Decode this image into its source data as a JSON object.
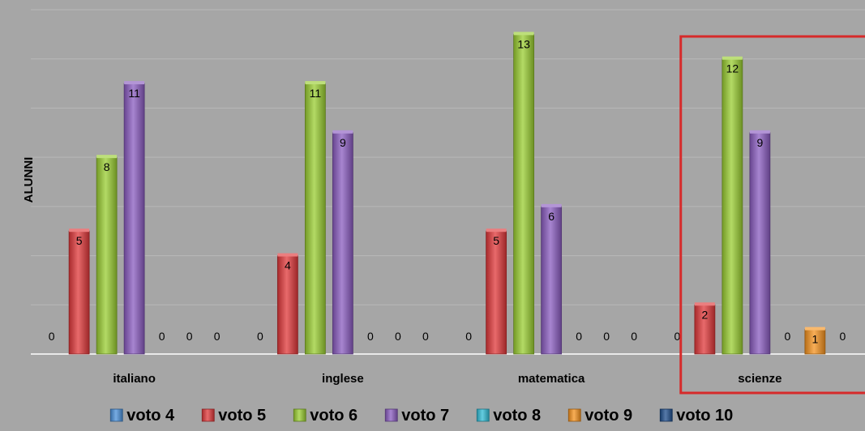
{
  "chart_data": {
    "type": "bar",
    "title": "",
    "xlabel": "",
    "ylabel": "ALUNNI",
    "ylim": [
      0,
      14
    ],
    "grid": true,
    "legend_position": "bottom",
    "categories": [
      "italiano",
      "inglese",
      "matematica",
      "scienze"
    ],
    "series": [
      {
        "name": "voto 4",
        "color": "#4a90d9",
        "values": [
          0,
          0,
          0,
          0
        ]
      },
      {
        "name": "voto 5",
        "color": "#e0383a",
        "values": [
          5,
          4,
          5,
          2
        ]
      },
      {
        "name": "voto 6",
        "color": "#9acd32",
        "values": [
          8,
          11,
          13,
          12
        ]
      },
      {
        "name": "voto 7",
        "color": "#8a5cc0",
        "values": [
          11,
          9,
          6,
          9
        ]
      },
      {
        "name": "voto 8",
        "color": "#31bcd6",
        "values": [
          0,
          0,
          0,
          0
        ]
      },
      {
        "name": "voto 9",
        "color": "#f5931f",
        "values": [
          0,
          0,
          0,
          1
        ]
      },
      {
        "name": "voto 10",
        "color": "#1f4e8c",
        "values": [
          0,
          0,
          0,
          0
        ]
      }
    ],
    "highlight": {
      "category": "scienze",
      "color": "#d62a2a"
    }
  }
}
